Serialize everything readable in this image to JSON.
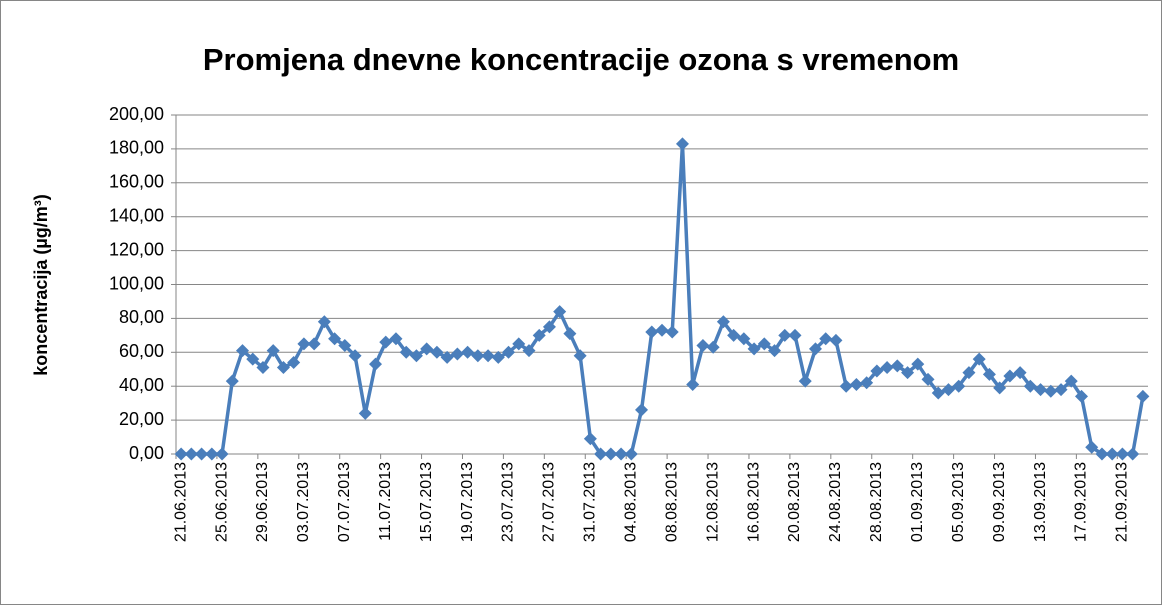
{
  "chart_data": {
    "type": "line",
    "title": "Promjena dnevne koncentracije ozona s vremenom",
    "y_label": "koncentracija (µg/m³)",
    "categories": [
      "21.06.2013",
      null,
      null,
      null,
      "25.06.2013",
      null,
      null,
      null,
      "29.06.2013",
      null,
      null,
      null,
      "03.07.2013",
      null,
      null,
      null,
      "07.07.2013",
      null,
      null,
      null,
      "11.07.2013",
      null,
      null,
      null,
      "15.07.2013",
      null,
      null,
      null,
      "19.07.2013",
      null,
      null,
      null,
      "23.07.2013",
      null,
      null,
      null,
      "27.07.2013",
      null,
      null,
      null,
      "31.07.2013",
      null,
      null,
      null,
      "04.08.2013",
      null,
      null,
      null,
      "08.08.2013",
      null,
      null,
      null,
      "12.08.2013",
      null,
      null,
      null,
      "16.08.2013",
      null,
      null,
      null,
      "20.08.2013",
      null,
      null,
      null,
      "24.08.2013",
      null,
      null,
      null,
      "28.08.2013",
      null,
      null,
      null,
      "01.09.2013",
      null,
      null,
      null,
      "05.09.2013",
      null,
      null,
      null,
      "09.09.2013",
      null,
      null,
      null,
      "13.09.2013",
      null,
      null,
      null,
      "17.09.2013",
      null,
      null,
      null,
      "21.09.2013",
      null,
      null
    ],
    "series": [
      {
        "name": "koncentracija",
        "color": "#4a7ebb",
        "values": [
          0,
          0,
          0,
          0,
          0,
          43,
          61,
          56,
          51,
          61,
          51,
          54,
          65,
          65,
          78,
          68,
          64,
          58,
          24,
          53,
          66,
          68,
          60,
          58,
          62,
          60,
          57,
          59,
          60,
          58,
          58,
          57,
          60,
          65,
          61,
          70,
          75,
          84,
          71,
          58,
          9,
          0,
          0,
          0,
          0,
          26,
          72,
          73,
          72,
          183,
          41,
          64,
          63,
          78,
          70,
          68,
          62,
          65,
          61,
          70,
          70,
          43,
          62,
          68,
          67,
          40,
          41,
          42,
          49,
          51,
          52,
          48,
          53,
          44,
          36,
          38,
          40,
          48,
          56,
          47,
          39,
          46,
          48,
          40,
          38,
          37,
          38,
          43,
          34,
          4,
          0,
          0,
          0,
          0,
          34
        ]
      }
    ],
    "ylim": [
      0,
      200
    ],
    "yticks": [
      {
        "value": 0,
        "label": "0,00"
      },
      {
        "value": 20,
        "label": "20,00"
      },
      {
        "value": 40,
        "label": "40,00"
      },
      {
        "value": 60,
        "label": "60,00"
      },
      {
        "value": 80,
        "label": "80,00"
      },
      {
        "value": 100,
        "label": "100,00"
      },
      {
        "value": 120,
        "label": "120,00"
      },
      {
        "value": 140,
        "label": "140,00"
      },
      {
        "value": 160,
        "label": "160,00"
      },
      {
        "value": 180,
        "label": "180,00"
      },
      {
        "value": 200,
        "label": "200,00"
      }
    ],
    "grid": true
  }
}
